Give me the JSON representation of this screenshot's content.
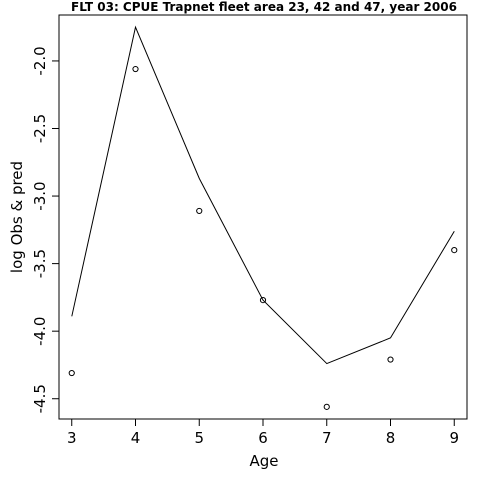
{
  "chart_data": {
    "type": "line",
    "title": "FLT 03: CPUE Trapnet fleet area 23, 42 and 47, year 2006",
    "xlabel": "Age",
    "ylabel": "log Obs & pred",
    "x": [
      3,
      4,
      5,
      6,
      7,
      8,
      9
    ],
    "xlim": [
      2.8,
      9.2
    ],
    "ylim": [
      -4.65,
      -1.66
    ],
    "x_ticks": [
      "3",
      "4",
      "5",
      "6",
      "7",
      "8",
      "9"
    ],
    "y_ticks": [
      "-2.0",
      "-2.5",
      "-3.0",
      "-3.5",
      "-4.0",
      "-4.5"
    ],
    "y_tick_values": [
      -2.0,
      -2.5,
      -3.0,
      -3.5,
      -4.0,
      -4.5
    ],
    "grid": false,
    "series": [
      {
        "style": "line",
        "values": [
          -3.89,
          -1.75,
          -2.87,
          -3.77,
          -4.24,
          -4.05,
          -3.26
        ]
      },
      {
        "style": "points",
        "values": [
          -4.31,
          -2.06,
          -3.11,
          -3.77,
          -4.56,
          -4.21,
          -3.4
        ]
      }
    ]
  }
}
